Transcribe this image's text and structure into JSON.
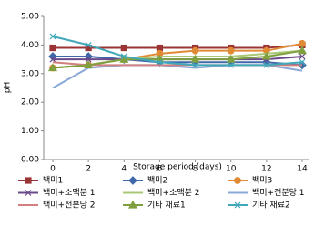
{
  "chart_data": {
    "type": "line",
    "x_label": "Storage period (days)",
    "y_label": "pH",
    "x": [
      0,
      2,
      4,
      6,
      8,
      10,
      12,
      14
    ],
    "xlim": [
      0,
      14
    ],
    "xticks": [
      0,
      2,
      4,
      6,
      8,
      10,
      12,
      14
    ],
    "ylim": [
      0,
      5
    ],
    "yticks": [
      {
        "value": 0,
        "label": "0.00"
      },
      {
        "value": 1,
        "label": "1.00"
      },
      {
        "value": 2,
        "label": "2.00"
      },
      {
        "value": 3,
        "label": "3.00"
      },
      {
        "value": 4,
        "label": "4.00"
      },
      {
        "value": 5,
        "label": "5.00"
      }
    ],
    "grid": false,
    "legend": "bottom",
    "series": [
      {
        "name": "백미1",
        "color": "#9b3535",
        "marker": "square",
        "values": [
          3.9,
          3.9,
          3.9,
          3.9,
          3.9,
          3.9,
          3.9,
          4.0
        ]
      },
      {
        "name": "백미2",
        "color": "#4068a8",
        "marker": "diamond",
        "values": [
          3.6,
          3.6,
          3.5,
          3.4,
          3.4,
          3.4,
          3.4,
          3.3
        ]
      },
      {
        "name": "백미3",
        "color": "#e08a35",
        "marker": "circle",
        "values": [
          3.2,
          3.3,
          3.5,
          3.7,
          3.8,
          3.8,
          3.8,
          4.05
        ]
      },
      {
        "name": "백미+소맥분 1",
        "color": "#6a4a8a",
        "marker": "x",
        "values": [
          3.5,
          3.5,
          3.5,
          3.5,
          3.5,
          3.5,
          3.5,
          3.6
        ]
      },
      {
        "name": "백미+소맥분 2",
        "color": "#a8c878",
        "marker": "none",
        "values": [
          3.2,
          3.3,
          3.5,
          3.6,
          3.6,
          3.6,
          3.7,
          3.8
        ]
      },
      {
        "name": "백미+전분당 1",
        "color": "#8aa8d8",
        "marker": "none",
        "values": [
          2.5,
          3.2,
          3.3,
          3.3,
          3.2,
          3.3,
          3.3,
          3.1
        ]
      },
      {
        "name": "백미+전분당 2",
        "color": "#d08080",
        "marker": "none",
        "values": [
          3.4,
          3.3,
          3.3,
          3.3,
          3.3,
          3.3,
          3.3,
          3.3
        ]
      },
      {
        "name": "기타 재료1",
        "color": "#80a040",
        "marker": "triangle",
        "values": [
          3.2,
          3.3,
          3.5,
          3.5,
          3.5,
          3.5,
          3.6,
          3.8
        ]
      },
      {
        "name": "기타 재료2",
        "color": "#40a8b8",
        "marker": "x",
        "values": [
          4.3,
          4.0,
          3.6,
          3.4,
          3.3,
          3.3,
          3.3,
          3.4
        ]
      }
    ]
  }
}
